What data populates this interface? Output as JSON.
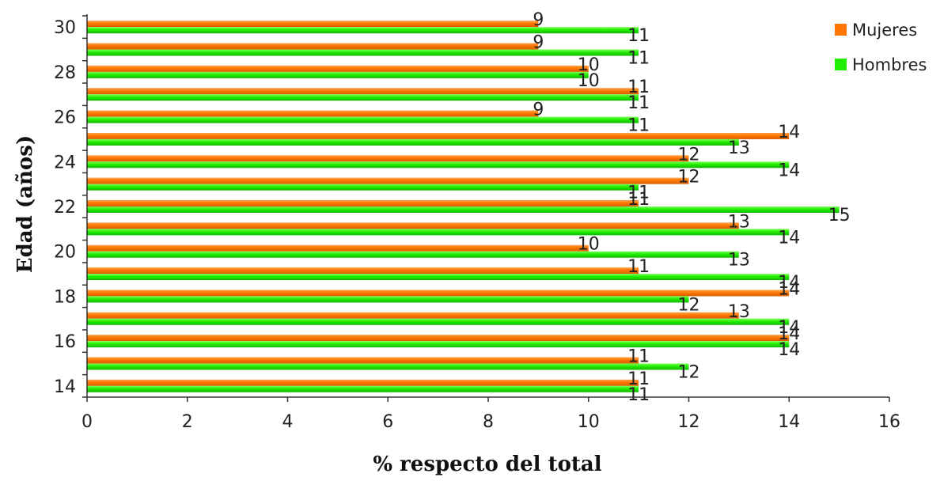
{
  "chart_data": {
    "type": "bar",
    "orientation": "horizontal",
    "xlabel": "% respecto del total",
    "ylabel": "Edad (años)",
    "xlim": [
      0,
      16
    ],
    "x_ticks": [
      "0",
      "2",
      "4",
      "6",
      "8",
      "10",
      "12",
      "14",
      "16"
    ],
    "categories": [
      "14",
      "15",
      "16",
      "17",
      "18",
      "19",
      "20",
      "21",
      "22",
      "23",
      "24",
      "25",
      "26",
      "27",
      "28",
      "29",
      "30"
    ],
    "category_tick_labels": [
      "14",
      "16",
      "18",
      "20",
      "22",
      "24",
      "26",
      "28",
      "30"
    ],
    "series": [
      {
        "name": "Mujeres",
        "color": "#ff7700",
        "values": [
          11,
          11,
          14,
          13,
          14,
          11,
          10,
          13,
          11,
          12,
          12,
          14,
          9,
          11,
          10,
          9,
          9
        ]
      },
      {
        "name": "Hombres",
        "color": "#22ee00",
        "values": [
          11,
          12,
          14,
          14,
          12,
          14,
          13,
          14,
          15,
          11,
          14,
          13,
          11,
          11,
          10,
          11,
          11
        ]
      }
    ],
    "legend_position": "top-right",
    "grid": false
  }
}
